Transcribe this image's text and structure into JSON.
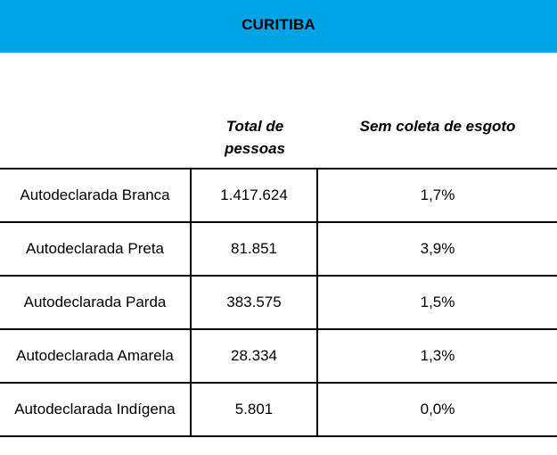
{
  "header": {
    "title": "CURITIBA",
    "banner_color": "#00a3e6"
  },
  "columns": {
    "total_line1": "Total de",
    "total_line2": "pessoas",
    "sem_coleta": "Sem coleta de esgoto"
  },
  "rows": [
    {
      "label": "Autodeclarada Branca",
      "total": "1.417.624",
      "sem_coleta": "1,7%"
    },
    {
      "label": "Autodeclarada Preta",
      "total": "81.851",
      "sem_coleta": "3,9%"
    },
    {
      "label": "Autodeclarada Parda",
      "total": "383.575",
      "sem_coleta": "1,5%"
    },
    {
      "label": "Autodeclarada Amarela",
      "total": "28.334",
      "sem_coleta": "1,3%"
    },
    {
      "label": "Autodeclarada Indígena",
      "total": "5.801",
      "sem_coleta": "0,0%"
    }
  ]
}
